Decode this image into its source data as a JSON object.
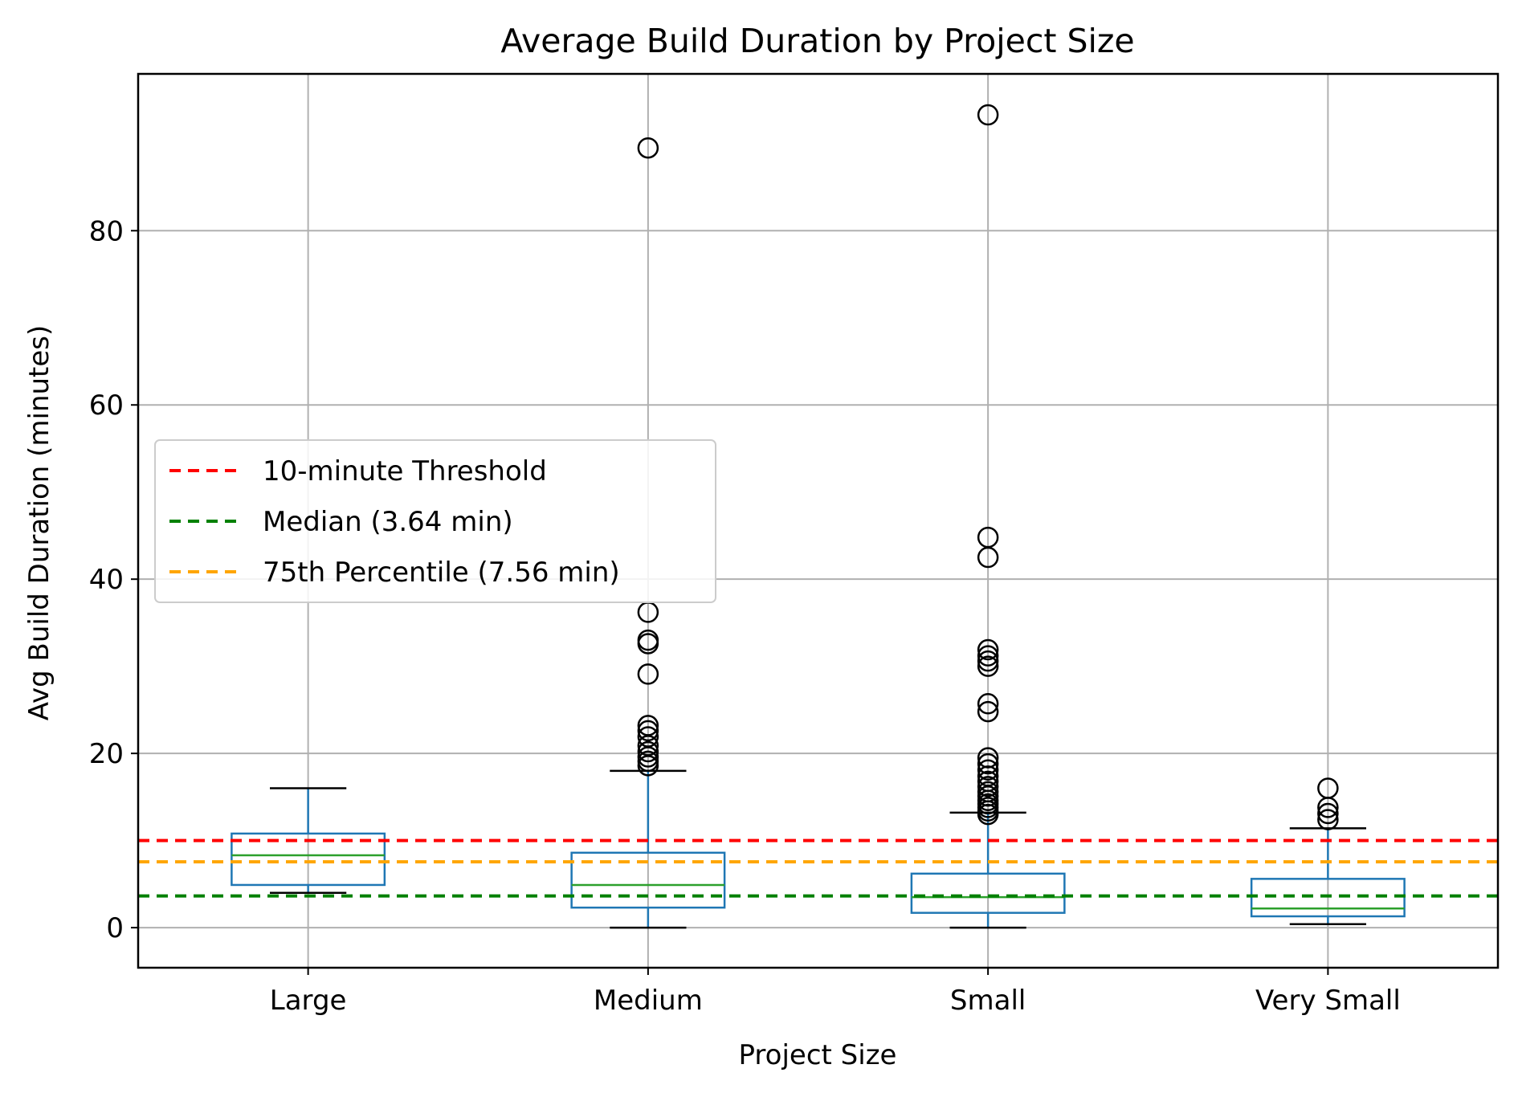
{
  "chart_data": {
    "type": "boxplot",
    "title": "Average Build Duration by Project Size",
    "xlabel": "Project Size",
    "ylabel": "Avg Build Duration (minutes)",
    "categories": [
      "Large",
      "Medium",
      "Small",
      "Very Small"
    ],
    "ylim": [
      -4.6,
      98
    ],
    "yticks": [
      0,
      20,
      40,
      60,
      80
    ],
    "grid": true,
    "legend_position": "center-left",
    "boxes": [
      {
        "category": "Large",
        "whisker_low": 4.0,
        "q1": 4.9,
        "median": 8.3,
        "q3": 10.8,
        "whisker_high": 16.0,
        "outliers": []
      },
      {
        "category": "Medium",
        "whisker_low": 0.0,
        "q1": 2.3,
        "median": 4.9,
        "q3": 8.6,
        "whisker_high": 18.0,
        "outliers": [
          18.6,
          19.1,
          19.6,
          20.2,
          20.9,
          21.9,
          22.6,
          23.2,
          29.1,
          32.6,
          33.0,
          36.2,
          89.5
        ]
      },
      {
        "category": "Small",
        "whisker_low": 0.0,
        "q1": 1.7,
        "median": 3.5,
        "q3": 6.2,
        "whisker_high": 13.2,
        "outliers": [
          13.0,
          13.4,
          13.8,
          14.2,
          14.6,
          15.1,
          15.6,
          16.2,
          16.8,
          17.4,
          18.1,
          18.8,
          19.5,
          24.8,
          25.7,
          30.0,
          30.6,
          31.2,
          31.9,
          42.5,
          44.8,
          93.3
        ]
      },
      {
        "category": "Very Small",
        "whisker_low": 0.4,
        "q1": 1.3,
        "median": 2.2,
        "q3": 5.6,
        "whisker_high": 11.4,
        "outliers": [
          12.4,
          13.1,
          13.8,
          16.0
        ]
      }
    ],
    "reference_lines": [
      {
        "label": "10-minute Threshold",
        "value": 10.0,
        "color": "#ff0000"
      },
      {
        "label": "Median (3.64 min)",
        "value": 3.64,
        "color": "#008000"
      },
      {
        "label": "75th Percentile (7.56 min)",
        "value": 7.56,
        "color": "#ffa500"
      }
    ],
    "colors": {
      "box": "#1f77b4",
      "median": "#2ca02c",
      "whisker": "#000000",
      "grid": "#b0b0b0"
    }
  }
}
